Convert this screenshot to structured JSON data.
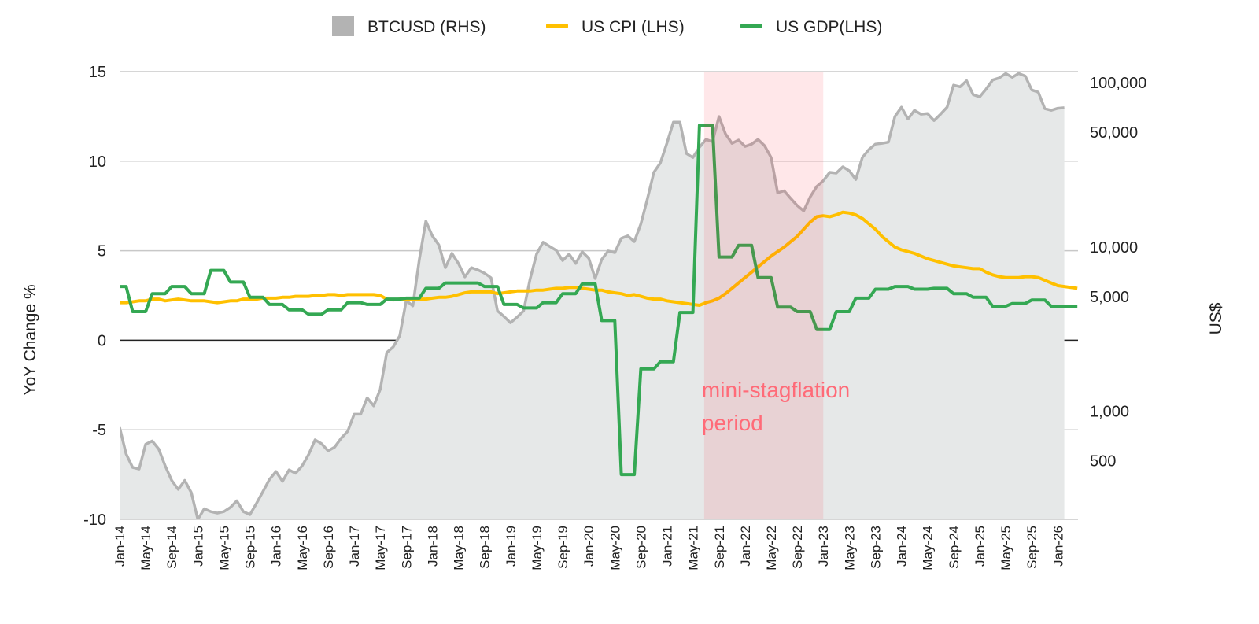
{
  "chart_data": {
    "type": "line",
    "title": "",
    "legend": {
      "placement": "top",
      "items": [
        {
          "label": "BTCUSD (RHS)",
          "marker": "square",
          "color": "#b3b3b3"
        },
        {
          "label": "US CPI (LHS)",
          "marker": "line",
          "color": "#ffc000"
        },
        {
          "label": "US GDP(LHS)",
          "marker": "line",
          "color": "#34a853"
        }
      ]
    },
    "x": {
      "start_month": "Jan-14",
      "frequency": "monthly",
      "tick_labels": [
        "Jan-14",
        "May-14",
        "Sep-14",
        "Jan-15",
        "May-15",
        "Sep-15",
        "Jan-16",
        "May-16",
        "Sep-16",
        "Jan-17",
        "May-17",
        "Sep-17",
        "Jan-18",
        "May-18",
        "Sep-18",
        "Jan-19",
        "May-19",
        "Sep-19",
        "Jan-20",
        "May-20",
        "Sep-20",
        "Jan-21",
        "May-21",
        "Sep-21",
        "Jan-22",
        "May-22",
        "Sep-22",
        "Jan-23",
        "May-23",
        "Sep-23",
        "Jan-24",
        "May-24",
        "Sep-24",
        "Jan-25",
        "May-25",
        "Sep-25",
        "Jan-26"
      ]
    },
    "y_left": {
      "label": "YoY Change %",
      "range": [
        -10,
        15
      ],
      "ticks": [
        15,
        10,
        5,
        0,
        -5,
        -10
      ],
      "tick_labels": [
        "15",
        "10",
        "5",
        "0",
        "-5",
        "-10"
      ],
      "grid": true
    },
    "y_right": {
      "label": "US$",
      "scale": "log",
      "range": [
        220,
        117000
      ],
      "ticks": [
        100000,
        50000,
        10000,
        5000,
        1000,
        500
      ],
      "tick_labels": [
        "100,000",
        "50,000",
        "10,000",
        "5,000",
        "1,000",
        "500"
      ]
    },
    "series": [
      {
        "name": "BTCUSD (RHS)",
        "axis": "right",
        "style": "area",
        "color": "#b3b3b3",
        "fill": "#e6e8e8",
        "values": [
          800,
          550,
          455,
          445,
          630,
          660,
          590,
          465,
          380,
          335,
          380,
          320,
          220,
          255,
          245,
          240,
          245,
          260,
          285,
          245,
          235,
          275,
          325,
          385,
          430,
          375,
          440,
          420,
          465,
          545,
          670,
          635,
          575,
          605,
          685,
          755,
          960,
          960,
          1210,
          1080,
          1360,
          2280,
          2470,
          2880,
          4730,
          4380,
          8400,
          14400,
          11700,
          10300,
          7500,
          9150,
          7950,
          6580,
          7500,
          7250,
          6930,
          6500,
          4090,
          3780,
          3460,
          3740,
          4090,
          6370,
          9060,
          10700,
          10100,
          9560,
          8280,
          9060,
          7950,
          9360,
          8560,
          6440,
          8410,
          9470,
          9250,
          11300,
          11700,
          10800,
          13800,
          19600,
          28500,
          32500,
          42800,
          57600,
          57600,
          37100,
          35100,
          40500,
          45200,
          43800,
          62300,
          48900,
          42800,
          44800,
          41000,
          42300,
          45200,
          41400,
          35100,
          21400,
          22000,
          19800,
          17900,
          16600,
          20200,
          23400,
          25300,
          28500,
          28200,
          30800,
          29100,
          25800,
          35100,
          39200,
          42300,
          42800,
          43500,
          62300,
          71100,
          60200,
          68000,
          64400,
          65000,
          58900,
          64400,
          71100,
          96800,
          94600,
          103000,
          84800,
          82000,
          91600,
          104000,
          107000,
          114000,
          108000,
          114000,
          110000,
          90500,
          87700,
          69600,
          68000,
          70000,
          70500
        ]
      },
      {
        "name": "US CPI (LHS)",
        "axis": "left",
        "style": "line",
        "color": "#ffc000",
        "values": [
          2.1,
          2.1,
          2.15,
          2.2,
          2.2,
          2.3,
          2.3,
          2.2,
          2.25,
          2.3,
          2.25,
          2.2,
          2.2,
          2.2,
          2.15,
          2.1,
          2.15,
          2.2,
          2.2,
          2.3,
          2.3,
          2.3,
          2.35,
          2.35,
          2.35,
          2.4,
          2.4,
          2.45,
          2.45,
          2.45,
          2.5,
          2.5,
          2.55,
          2.55,
          2.5,
          2.55,
          2.55,
          2.55,
          2.55,
          2.55,
          2.5,
          2.3,
          2.25,
          2.3,
          2.3,
          2.3,
          2.3,
          2.3,
          2.35,
          2.4,
          2.4,
          2.45,
          2.55,
          2.65,
          2.7,
          2.7,
          2.7,
          2.7,
          2.6,
          2.65,
          2.7,
          2.75,
          2.75,
          2.75,
          2.8,
          2.8,
          2.85,
          2.9,
          2.9,
          2.95,
          2.95,
          2.9,
          2.85,
          2.8,
          2.8,
          2.7,
          2.65,
          2.6,
          2.5,
          2.55,
          2.45,
          2.35,
          2.3,
          2.3,
          2.2,
          2.15,
          2.1,
          2.05,
          2.0,
          1.95,
          2.1,
          2.2,
          2.35,
          2.6,
          2.9,
          3.2,
          3.5,
          3.8,
          4.1,
          4.4,
          4.7,
          4.95,
          5.2,
          5.5,
          5.8,
          6.2,
          6.6,
          6.9,
          6.95,
          6.9,
          7.0,
          7.15,
          7.1,
          7.0,
          6.8,
          6.5,
          6.2,
          5.8,
          5.5,
          5.2,
          5.05,
          4.95,
          4.85,
          4.7,
          4.55,
          4.45,
          4.35,
          4.25,
          4.15,
          4.1,
          4.05,
          4.0,
          4.0,
          3.8,
          3.65,
          3.55,
          3.5,
          3.5,
          3.5,
          3.55,
          3.55,
          3.5,
          3.35,
          3.2,
          3.05,
          3.0,
          2.95,
          2.9
        ]
      },
      {
        "name": "US GDP(LHS)",
        "axis": "left",
        "style": "line",
        "color": "#34a853",
        "values": [
          3.0,
          3.0,
          1.6,
          1.6,
          1.6,
          2.6,
          2.6,
          2.6,
          3.0,
          3.0,
          3.0,
          2.6,
          2.6,
          2.6,
          3.9,
          3.9,
          3.9,
          3.25,
          3.25,
          3.25,
          2.4,
          2.4,
          2.4,
          2.0,
          2.0,
          2.0,
          1.7,
          1.7,
          1.7,
          1.45,
          1.45,
          1.45,
          1.7,
          1.7,
          1.7,
          2.1,
          2.1,
          2.1,
          2.0,
          2.0,
          2.0,
          2.3,
          2.3,
          2.3,
          2.35,
          2.35,
          2.35,
          2.9,
          2.9,
          2.9,
          3.2,
          3.2,
          3.2,
          3.2,
          3.2,
          3.2,
          3.0,
          3.0,
          3.0,
          2.0,
          2.0,
          2.0,
          1.8,
          1.8,
          1.8,
          2.1,
          2.1,
          2.1,
          2.6,
          2.6,
          2.6,
          3.15,
          3.15,
          3.15,
          1.1,
          1.1,
          1.1,
          -7.5,
          -7.5,
          -7.5,
          -1.6,
          -1.6,
          -1.6,
          -1.2,
          -1.2,
          -1.2,
          1.55,
          1.55,
          1.55,
          12.0,
          12.0,
          12.0,
          4.65,
          4.65,
          4.65,
          5.3,
          5.3,
          5.3,
          3.5,
          3.5,
          3.5,
          1.85,
          1.85,
          1.85,
          1.6,
          1.6,
          1.6,
          0.6,
          0.6,
          0.6,
          1.6,
          1.6,
          1.6,
          2.35,
          2.35,
          2.35,
          2.85,
          2.85,
          2.85,
          3.0,
          3.0,
          3.0,
          2.85,
          2.85,
          2.85,
          2.9,
          2.9,
          2.9,
          2.6,
          2.6,
          2.6,
          2.4,
          2.4,
          2.4,
          1.9,
          1.9,
          1.9,
          2.05,
          2.05,
          2.05,
          2.25,
          2.25,
          2.25,
          1.9,
          1.9,
          1.9,
          1.9,
          1.9
        ]
      }
    ],
    "shaded_region": {
      "from": "Jun-21",
      "to": "Jan-23",
      "color": "#ff1428",
      "label_lines": [
        "mini-stagflation",
        "period"
      ],
      "label_color": "#ff6b78"
    },
    "zero_line": true
  }
}
